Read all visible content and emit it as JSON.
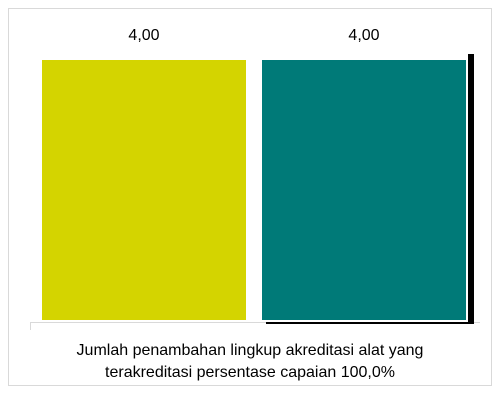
{
  "chart_data": {
    "type": "bar",
    "categories": [
      "Jumlah penambahan lingkup akreditasi alat yang terakreditasi persentase capaian 100,0%"
    ],
    "series": [
      {
        "color": "#d4d400",
        "values": [
          4.0
        ],
        "value_labels": [
          "4,00"
        ]
      },
      {
        "color": "#007a78",
        "values": [
          4.0
        ],
        "value_labels": [
          "4,00"
        ]
      }
    ],
    "ylim": [
      0,
      4
    ]
  }
}
